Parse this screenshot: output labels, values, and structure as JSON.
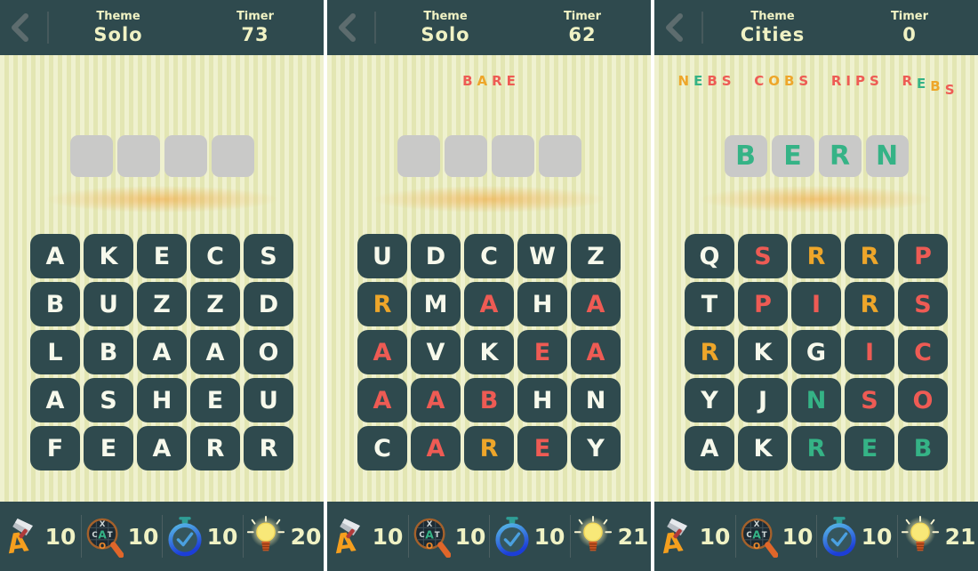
{
  "colors": {
    "dark_teal": "#2f4a4e",
    "stripe_light": "#eff1cf",
    "stripe_dark": "#e3e6b3",
    "cream_text": "#f0f2c4",
    "letter_white": "#f7f9ec",
    "letter_red": "#ee5b54",
    "letter_amber": "#eea62a",
    "letter_green": "#35b386",
    "slot_gray": "#c9c9c8",
    "glow_orange": "#f4a032"
  },
  "panels": [
    {
      "header": {
        "theme_label": "Theme",
        "theme_value": "Solo",
        "timer_label": "Timer",
        "timer_value": "73"
      },
      "found_words": [],
      "slots": [
        "",
        "",
        "",
        ""
      ],
      "grid": [
        [
          {
            "ch": "A",
            "c": "w"
          },
          {
            "ch": "K",
            "c": "w"
          },
          {
            "ch": "E",
            "c": "w"
          },
          {
            "ch": "C",
            "c": "w"
          },
          {
            "ch": "S",
            "c": "w"
          }
        ],
        [
          {
            "ch": "B",
            "c": "w"
          },
          {
            "ch": "U",
            "c": "w"
          },
          {
            "ch": "Z",
            "c": "w"
          },
          {
            "ch": "Z",
            "c": "w"
          },
          {
            "ch": "D",
            "c": "w"
          }
        ],
        [
          {
            "ch": "L",
            "c": "w"
          },
          {
            "ch": "B",
            "c": "w"
          },
          {
            "ch": "A",
            "c": "w"
          },
          {
            "ch": "A",
            "c": "w"
          },
          {
            "ch": "O",
            "c": "w"
          }
        ],
        [
          {
            "ch": "A",
            "c": "w"
          },
          {
            "ch": "S",
            "c": "w"
          },
          {
            "ch": "H",
            "c": "w"
          },
          {
            "ch": "E",
            "c": "w"
          },
          {
            "ch": "U",
            "c": "w"
          }
        ],
        [
          {
            "ch": "F",
            "c": "w"
          },
          {
            "ch": "E",
            "c": "w"
          },
          {
            "ch": "A",
            "c": "w"
          },
          {
            "ch": "R",
            "c": "w"
          },
          {
            "ch": "R",
            "c": "w"
          }
        ]
      ],
      "powerups": [
        {
          "name": "Remove letter",
          "count": "10"
        },
        {
          "name": "Word search",
          "count": "10"
        },
        {
          "name": "Extra time",
          "count": "10"
        },
        {
          "name": "Hint",
          "count": "20"
        }
      ]
    },
    {
      "header": {
        "theme_label": "Theme",
        "theme_value": "Solo",
        "timer_label": "Timer",
        "timer_value": "62"
      },
      "found_words": [
        {
          "letters": [
            {
              "ch": "B",
              "c": "r"
            },
            {
              "ch": "A",
              "c": "a"
            },
            {
              "ch": "R",
              "c": "r"
            },
            {
              "ch": "E",
              "c": "r"
            }
          ]
        }
      ],
      "slots": [
        "",
        "",
        "",
        ""
      ],
      "grid": [
        [
          {
            "ch": "U",
            "c": "w"
          },
          {
            "ch": "D",
            "c": "w"
          },
          {
            "ch": "C",
            "c": "w"
          },
          {
            "ch": "W",
            "c": "w"
          },
          {
            "ch": "Z",
            "c": "w"
          }
        ],
        [
          {
            "ch": "R",
            "c": "a"
          },
          {
            "ch": "M",
            "c": "w"
          },
          {
            "ch": "A",
            "c": "r"
          },
          {
            "ch": "H",
            "c": "w"
          },
          {
            "ch": "A",
            "c": "r"
          }
        ],
        [
          {
            "ch": "A",
            "c": "r"
          },
          {
            "ch": "V",
            "c": "w"
          },
          {
            "ch": "K",
            "c": "w"
          },
          {
            "ch": "E",
            "c": "r"
          },
          {
            "ch": "A",
            "c": "r"
          }
        ],
        [
          {
            "ch": "A",
            "c": "r"
          },
          {
            "ch": "A",
            "c": "r"
          },
          {
            "ch": "B",
            "c": "r"
          },
          {
            "ch": "H",
            "c": "w"
          },
          {
            "ch": "N",
            "c": "w"
          }
        ],
        [
          {
            "ch": "C",
            "c": "w"
          },
          {
            "ch": "A",
            "c": "r"
          },
          {
            "ch": "R",
            "c": "a"
          },
          {
            "ch": "E",
            "c": "r"
          },
          {
            "ch": "Y",
            "c": "w"
          }
        ]
      ],
      "powerups": [
        {
          "name": "Remove letter",
          "count": "10"
        },
        {
          "name": "Word search",
          "count": "10"
        },
        {
          "name": "Extra time",
          "count": "10"
        },
        {
          "name": "Hint",
          "count": "21"
        }
      ]
    },
    {
      "header": {
        "theme_label": "Theme",
        "theme_value": "Cities",
        "timer_label": "Timer",
        "timer_value": "0"
      },
      "found_words": [
        {
          "letters": [
            {
              "ch": "N",
              "c": "a"
            },
            {
              "ch": "E",
              "c": "g"
            },
            {
              "ch": "B",
              "c": "r"
            },
            {
              "ch": "S",
              "c": "r"
            }
          ]
        },
        {
          "letters": [
            {
              "ch": "C",
              "c": "r"
            },
            {
              "ch": "O",
              "c": "a"
            },
            {
              "ch": "B",
              "c": "a"
            },
            {
              "ch": "S",
              "c": "r"
            }
          ]
        },
        {
          "letters": [
            {
              "ch": "R",
              "c": "r"
            },
            {
              "ch": "I",
              "c": "r"
            },
            {
              "ch": "P",
              "c": "r"
            },
            {
              "ch": "S",
              "c": "r"
            }
          ]
        },
        {
          "drop": true,
          "letters": [
            {
              "ch": "R",
              "c": "r"
            },
            {
              "ch": "E",
              "c": "g"
            },
            {
              "ch": "B",
              "c": "a"
            },
            {
              "ch": "S",
              "c": "r"
            }
          ]
        }
      ],
      "slots": [
        "B",
        "E",
        "R",
        "N"
      ],
      "grid": [
        [
          {
            "ch": "Q",
            "c": "w"
          },
          {
            "ch": "S",
            "c": "r"
          },
          {
            "ch": "R",
            "c": "a"
          },
          {
            "ch": "R",
            "c": "a"
          },
          {
            "ch": "P",
            "c": "r"
          }
        ],
        [
          {
            "ch": "T",
            "c": "w"
          },
          {
            "ch": "P",
            "c": "r"
          },
          {
            "ch": "I",
            "c": "r"
          },
          {
            "ch": "R",
            "c": "a"
          },
          {
            "ch": "S",
            "c": "r"
          }
        ],
        [
          {
            "ch": "R",
            "c": "a"
          },
          {
            "ch": "K",
            "c": "w"
          },
          {
            "ch": "G",
            "c": "w"
          },
          {
            "ch": "I",
            "c": "r"
          },
          {
            "ch": "C",
            "c": "r"
          }
        ],
        [
          {
            "ch": "Y",
            "c": "w"
          },
          {
            "ch": "J",
            "c": "w"
          },
          {
            "ch": "N",
            "c": "g"
          },
          {
            "ch": "S",
            "c": "r"
          },
          {
            "ch": "O",
            "c": "r"
          }
        ],
        [
          {
            "ch": "A",
            "c": "w"
          },
          {
            "ch": "K",
            "c": "w"
          },
          {
            "ch": "R",
            "c": "g"
          },
          {
            "ch": "E",
            "c": "g"
          },
          {
            "ch": "B",
            "c": "g"
          }
        ]
      ],
      "powerups": [
        {
          "name": "Remove letter",
          "count": "10"
        },
        {
          "name": "Word search",
          "count": "10"
        },
        {
          "name": "Extra time",
          "count": "10"
        },
        {
          "name": "Hint",
          "count": "21"
        }
      ]
    }
  ]
}
